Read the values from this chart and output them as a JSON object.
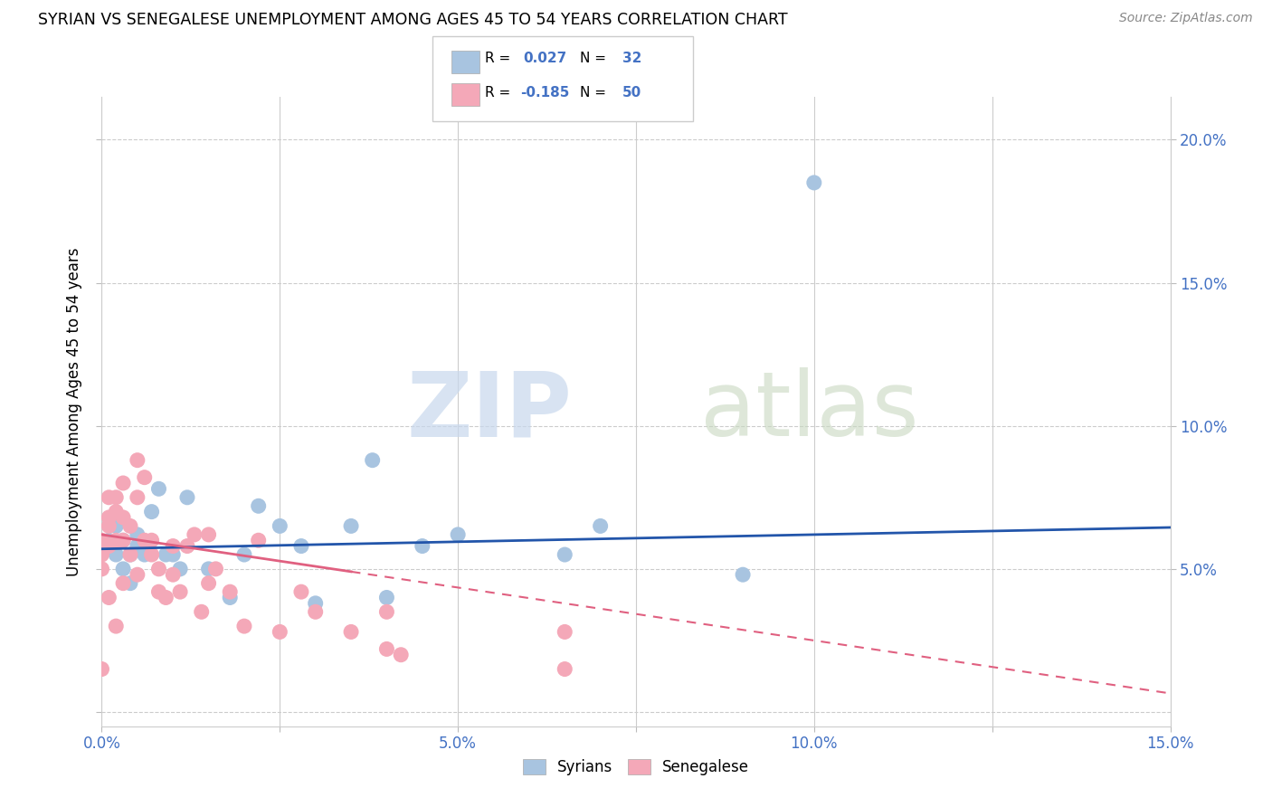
{
  "title": "SYRIAN VS SENEGALESE UNEMPLOYMENT AMONG AGES 45 TO 54 YEARS CORRELATION CHART",
  "source": "Source: ZipAtlas.com",
  "ylabel": "Unemployment Among Ages 45 to 54 years",
  "xlim": [
    0.0,
    0.15
  ],
  "ylim": [
    -0.005,
    0.215
  ],
  "syrian_R": 0.027,
  "syrian_N": 32,
  "senegalese_R": -0.185,
  "senegalese_N": 50,
  "syrian_color": "#a8c4e0",
  "senegalese_color": "#f4a8b8",
  "syrian_line_color": "#2255AA",
  "senegalese_line_color": "#E06080",
  "syrian_x": [
    0.001,
    0.002,
    0.002,
    0.003,
    0.003,
    0.004,
    0.004,
    0.005,
    0.005,
    0.006,
    0.007,
    0.008,
    0.009,
    0.01,
    0.011,
    0.012,
    0.015,
    0.018,
    0.02,
    0.022,
    0.025,
    0.028,
    0.03,
    0.035,
    0.04,
    0.045,
    0.05,
    0.065,
    0.07,
    0.09,
    0.1,
    0.038
  ],
  "syrian_y": [
    0.06,
    0.055,
    0.065,
    0.06,
    0.05,
    0.055,
    0.045,
    0.058,
    0.062,
    0.055,
    0.07,
    0.078,
    0.055,
    0.055,
    0.05,
    0.075,
    0.05,
    0.04,
    0.055,
    0.072,
    0.065,
    0.058,
    0.038,
    0.065,
    0.04,
    0.058,
    0.062,
    0.055,
    0.065,
    0.048,
    0.185,
    0.088
  ],
  "senegalese_x": [
    0.0,
    0.0,
    0.0,
    0.0,
    0.001,
    0.001,
    0.001,
    0.001,
    0.001,
    0.002,
    0.002,
    0.002,
    0.002,
    0.003,
    0.003,
    0.003,
    0.003,
    0.004,
    0.004,
    0.005,
    0.005,
    0.005,
    0.006,
    0.006,
    0.007,
    0.007,
    0.008,
    0.008,
    0.009,
    0.01,
    0.01,
    0.011,
    0.012,
    0.013,
    0.014,
    0.015,
    0.015,
    0.016,
    0.018,
    0.02,
    0.022,
    0.025,
    0.028,
    0.03,
    0.035,
    0.04,
    0.04,
    0.042,
    0.065,
    0.065
  ],
  "senegalese_y": [
    0.06,
    0.055,
    0.05,
    0.015,
    0.065,
    0.058,
    0.075,
    0.068,
    0.04,
    0.075,
    0.07,
    0.06,
    0.03,
    0.08,
    0.068,
    0.06,
    0.045,
    0.065,
    0.055,
    0.088,
    0.075,
    0.048,
    0.082,
    0.06,
    0.06,
    0.055,
    0.05,
    0.042,
    0.04,
    0.058,
    0.048,
    0.042,
    0.058,
    0.062,
    0.035,
    0.062,
    0.045,
    0.05,
    0.042,
    0.03,
    0.06,
    0.028,
    0.042,
    0.035,
    0.028,
    0.022,
    0.035,
    0.02,
    0.028,
    0.015
  ]
}
